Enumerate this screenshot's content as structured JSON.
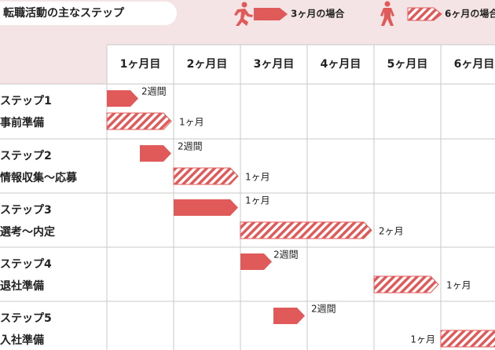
{
  "header": {
    "title": "転職活動の主なステップ",
    "legend": [
      {
        "label": "3ヶ月の場合"
      },
      {
        "label": "6ヶ月の場合"
      }
    ]
  },
  "table": {
    "months": [
      "1ヶ月目",
      "2ヶ月目",
      "3ヶ月目",
      "4ヶ月目",
      "5ヶ月目",
      "6ヶ月目"
    ],
    "steps": [
      {
        "name": "ステップ1",
        "task": "事前準備",
        "bars": [
          {
            "label": "2週間"
          },
          {
            "label": "1ヶ月"
          }
        ]
      },
      {
        "name": "ステップ2",
        "task": "情報収集～応募",
        "bars": [
          {
            "label": "2週間"
          },
          {
            "label": "1ヶ月"
          }
        ]
      },
      {
        "name": "ステップ3",
        "task": "選考～内定",
        "bars": [
          {
            "label": "1ヶ月"
          },
          {
            "label": "2ヶ月"
          }
        ]
      },
      {
        "name": "ステップ4",
        "task": "退社準備",
        "bars": [
          {
            "label": "2週間"
          },
          {
            "label": "1ヶ月"
          }
        ]
      },
      {
        "name": "ステップ5",
        "task": "入社準備",
        "bars": [
          {
            "label": "2週間"
          },
          {
            "label": "1ヶ月"
          }
        ]
      }
    ]
  }
}
